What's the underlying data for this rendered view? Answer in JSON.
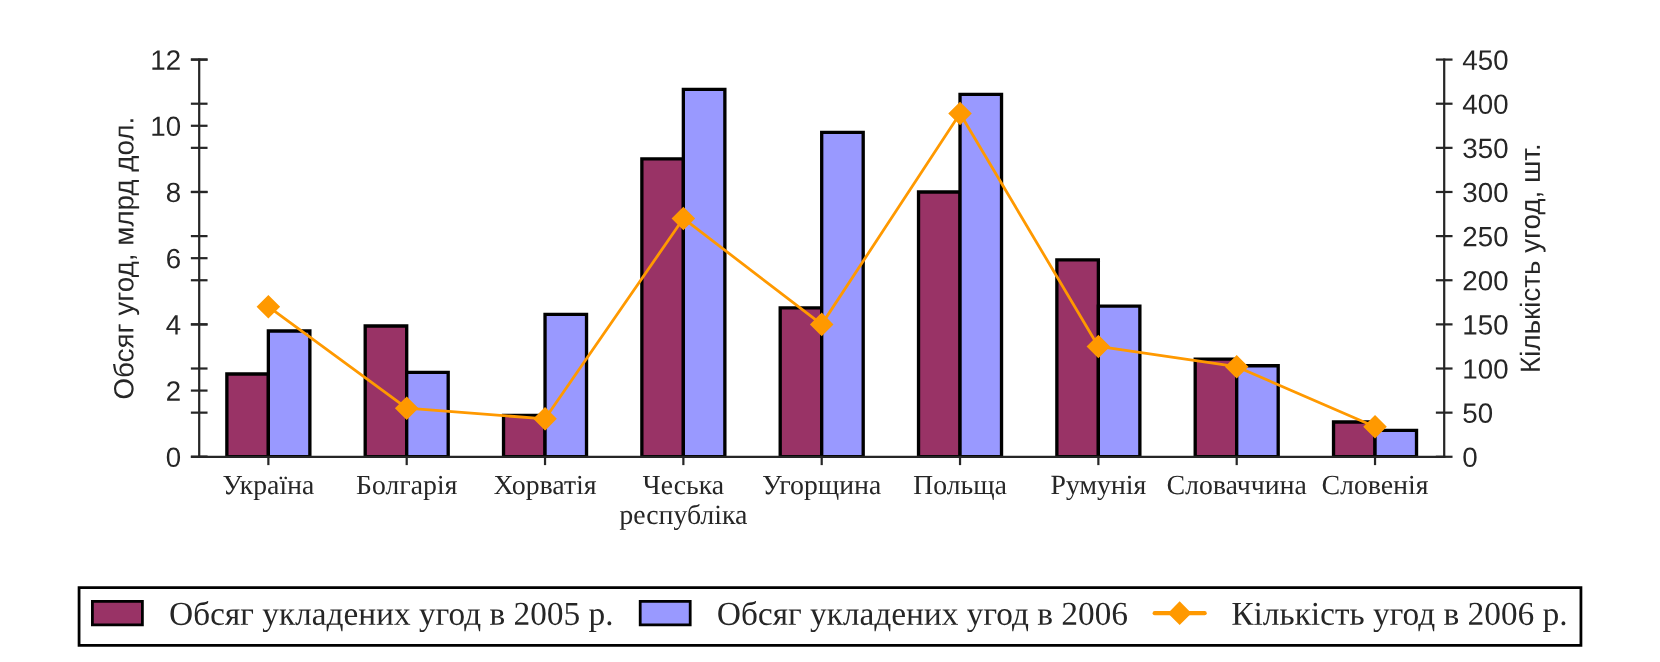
{
  "chart_data": {
    "type": "bar",
    "categories": [
      "Україна",
      "Болгарія",
      "Хорватія",
      "Чеська\nреспубліка",
      "Угорщина",
      "Польща",
      "Румунія",
      "Словаччина",
      "Словенія"
    ],
    "series": [
      {
        "name": "Обсяг укладених угод в 2005 р.",
        "color": "#993366",
        "values": [
          2.5,
          3.95,
          1.25,
          9.0,
          4.5,
          8.0,
          5.95,
          2.95,
          1.05
        ]
      },
      {
        "name": "Обсяг укладених угод в 2006",
        "color": "#9999ff",
        "values": [
          3.8,
          2.55,
          4.3,
          11.1,
          9.8,
          10.95,
          4.55,
          2.75,
          0.8
        ]
      },
      {
        "name": "Кількість угод в 2006 р.",
        "type": "line",
        "axis": "y2",
        "color": "#ff9900",
        "values": [
          170,
          55,
          43,
          270,
          150,
          389,
          125,
          102,
          34
        ]
      }
    ],
    "ylabel": "Обсяг угод, млрд дол.",
    "y2label": "Кількість угод, шт.",
    "ylim": [
      0,
      12
    ],
    "yticks": [
      0,
      2,
      4,
      6,
      8,
      10,
      12
    ],
    "y2lim": [
      0,
      450
    ],
    "y2ticks": [
      0,
      50,
      100,
      150,
      200,
      250,
      300,
      350,
      400,
      450
    ],
    "grid": false,
    "legend": "bottom",
    "marker": "diamond",
    "line_style": "solid"
  }
}
